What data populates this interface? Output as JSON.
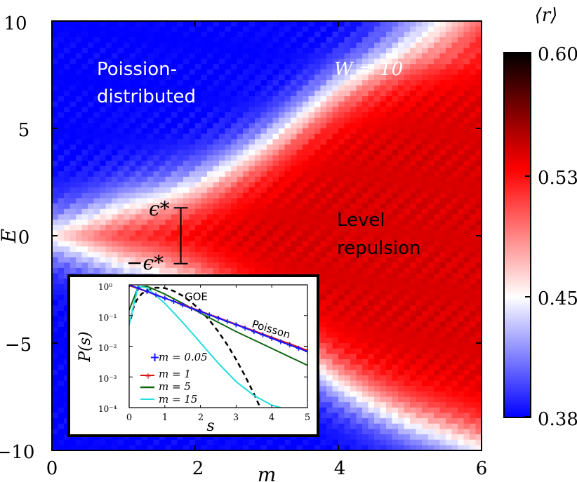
{
  "chart_data": [
    {
      "type": "heatmap",
      "title": "",
      "xlabel": "m",
      "ylabel": "E",
      "xlim": [
        0,
        6
      ],
      "ylim": [
        -10,
        10
      ],
      "x_ticks": [
        "0",
        "2",
        "4",
        "6"
      ],
      "y_ticks": [
        "10",
        "5",
        "0",
        "−5",
        "−10"
      ],
      "colorbar": {
        "label": "⟨r⟩",
        "ticks": [
          "0.60",
          "0.53",
          "0.45",
          "0.38"
        ],
        "range": [
          0.38,
          0.6
        ],
        "colors": [
          "#0000ff",
          "#ffffff",
          "#ff0000",
          "#000000"
        ]
      },
      "boundary_E_vs_m": {
        "m": [
          0,
          0.5,
          1,
          1.5,
          2,
          2.5,
          3,
          3.5,
          4,
          4.5,
          5,
          5.5,
          6
        ],
        "E": [
          0,
          0.6,
          1.2,
          1.6,
          2.2,
          3.1,
          4.2,
          5.5,
          6.8,
          7.8,
          8.6,
          9.2,
          9.8
        ]
      },
      "annotations": {
        "poisson_region": [
          "Poission-",
          "distributed"
        ],
        "repulsion_region": [
          "Level",
          "repulsion"
        ],
        "w_label": "W = 10",
        "eps_top": "ϵ*",
        "eps_bottom": "−ϵ*"
      },
      "eps_bracket_E": [
        -1.3,
        1.3
      ],
      "eps_bracket_m": 1.8
    },
    {
      "type": "line",
      "xlabel": "s",
      "ylabel": "P(s)",
      "xlim": [
        0,
        5
      ],
      "ylim_log10": [
        -4,
        0
      ],
      "x_ticks": [
        "0",
        "1",
        "2",
        "3",
        "4",
        "5"
      ],
      "y_ticks": [
        "10⁰",
        "10⁻¹",
        "10⁻²",
        "10⁻³",
        "10⁻⁴"
      ],
      "annotations": {
        "goe": "GOE",
        "poisson": "Poisson"
      },
      "series": [
        {
          "name": "m = 0.05",
          "marker": "+",
          "color": "#1a1aff",
          "x": [
            0,
            0.25,
            0.5,
            0.75,
            1,
            1.25,
            1.5,
            1.75,
            2,
            2.25,
            2.5,
            2.75,
            3,
            3.25,
            3.5,
            3.75,
            4,
            4.25,
            4.5,
            4.75,
            5
          ],
          "y": [
            1.0,
            0.78,
            0.61,
            0.47,
            0.37,
            0.29,
            0.22,
            0.17,
            0.135,
            0.105,
            0.082,
            0.064,
            0.05,
            0.039,
            0.03,
            0.0235,
            0.018,
            0.014,
            0.011,
            0.0086,
            0.0067
          ]
        },
        {
          "name": "m = 1",
          "marker": "+",
          "color": "#dd1111",
          "x": [
            0,
            0.5,
            1,
            1.5,
            2,
            2.5,
            3,
            3.5,
            4,
            4.5,
            5
          ],
          "y": [
            0.95,
            0.6,
            0.37,
            0.23,
            0.14,
            0.085,
            0.052,
            0.032,
            0.0195,
            0.012,
            0.0073
          ]
        },
        {
          "name": "m = 5",
          "marker": "",
          "color": "#116611",
          "x": [
            0,
            0.25,
            0.5,
            1,
            1.5,
            2,
            2.5,
            3,
            3.5,
            4,
            4.5,
            5
          ],
          "y": [
            0.15,
            0.85,
            0.9,
            0.5,
            0.25,
            0.12,
            0.06,
            0.03,
            0.016,
            0.0085,
            0.0045,
            0.0024
          ]
        },
        {
          "name": "m = 15",
          "marker": "",
          "color": "#22dddd",
          "x": [
            0,
            0.25,
            0.5,
            1,
            1.5,
            2,
            2.5,
            3,
            3.5,
            4,
            4.25
          ],
          "y": [
            0.05,
            0.9,
            0.8,
            0.25,
            0.06,
            0.013,
            0.0028,
            0.0007,
            0.00025,
            0.00012,
            0.0001
          ]
        },
        {
          "name": "GOE",
          "marker": "",
          "color": "#000000",
          "dashed": true,
          "x": [
            0.05,
            0.1,
            0.2,
            0.35,
            0.5,
            0.75,
            1,
            1.25,
            1.5,
            1.75,
            2,
            2.25,
            2.5,
            2.75,
            3,
            3.25,
            3.5,
            3.75
          ],
          "y": [
            0.078,
            0.156,
            0.306,
            0.51,
            0.67,
            0.81,
            0.78,
            0.63,
            0.44,
            0.27,
            0.148,
            0.071,
            0.03,
            0.0112,
            0.0037,
            0.00108,
            0.00028,
            6.5e-05
          ]
        }
      ],
      "legend": [
        "m = 0.05",
        "m = 1",
        "m = 5",
        "m = 15"
      ]
    }
  ]
}
